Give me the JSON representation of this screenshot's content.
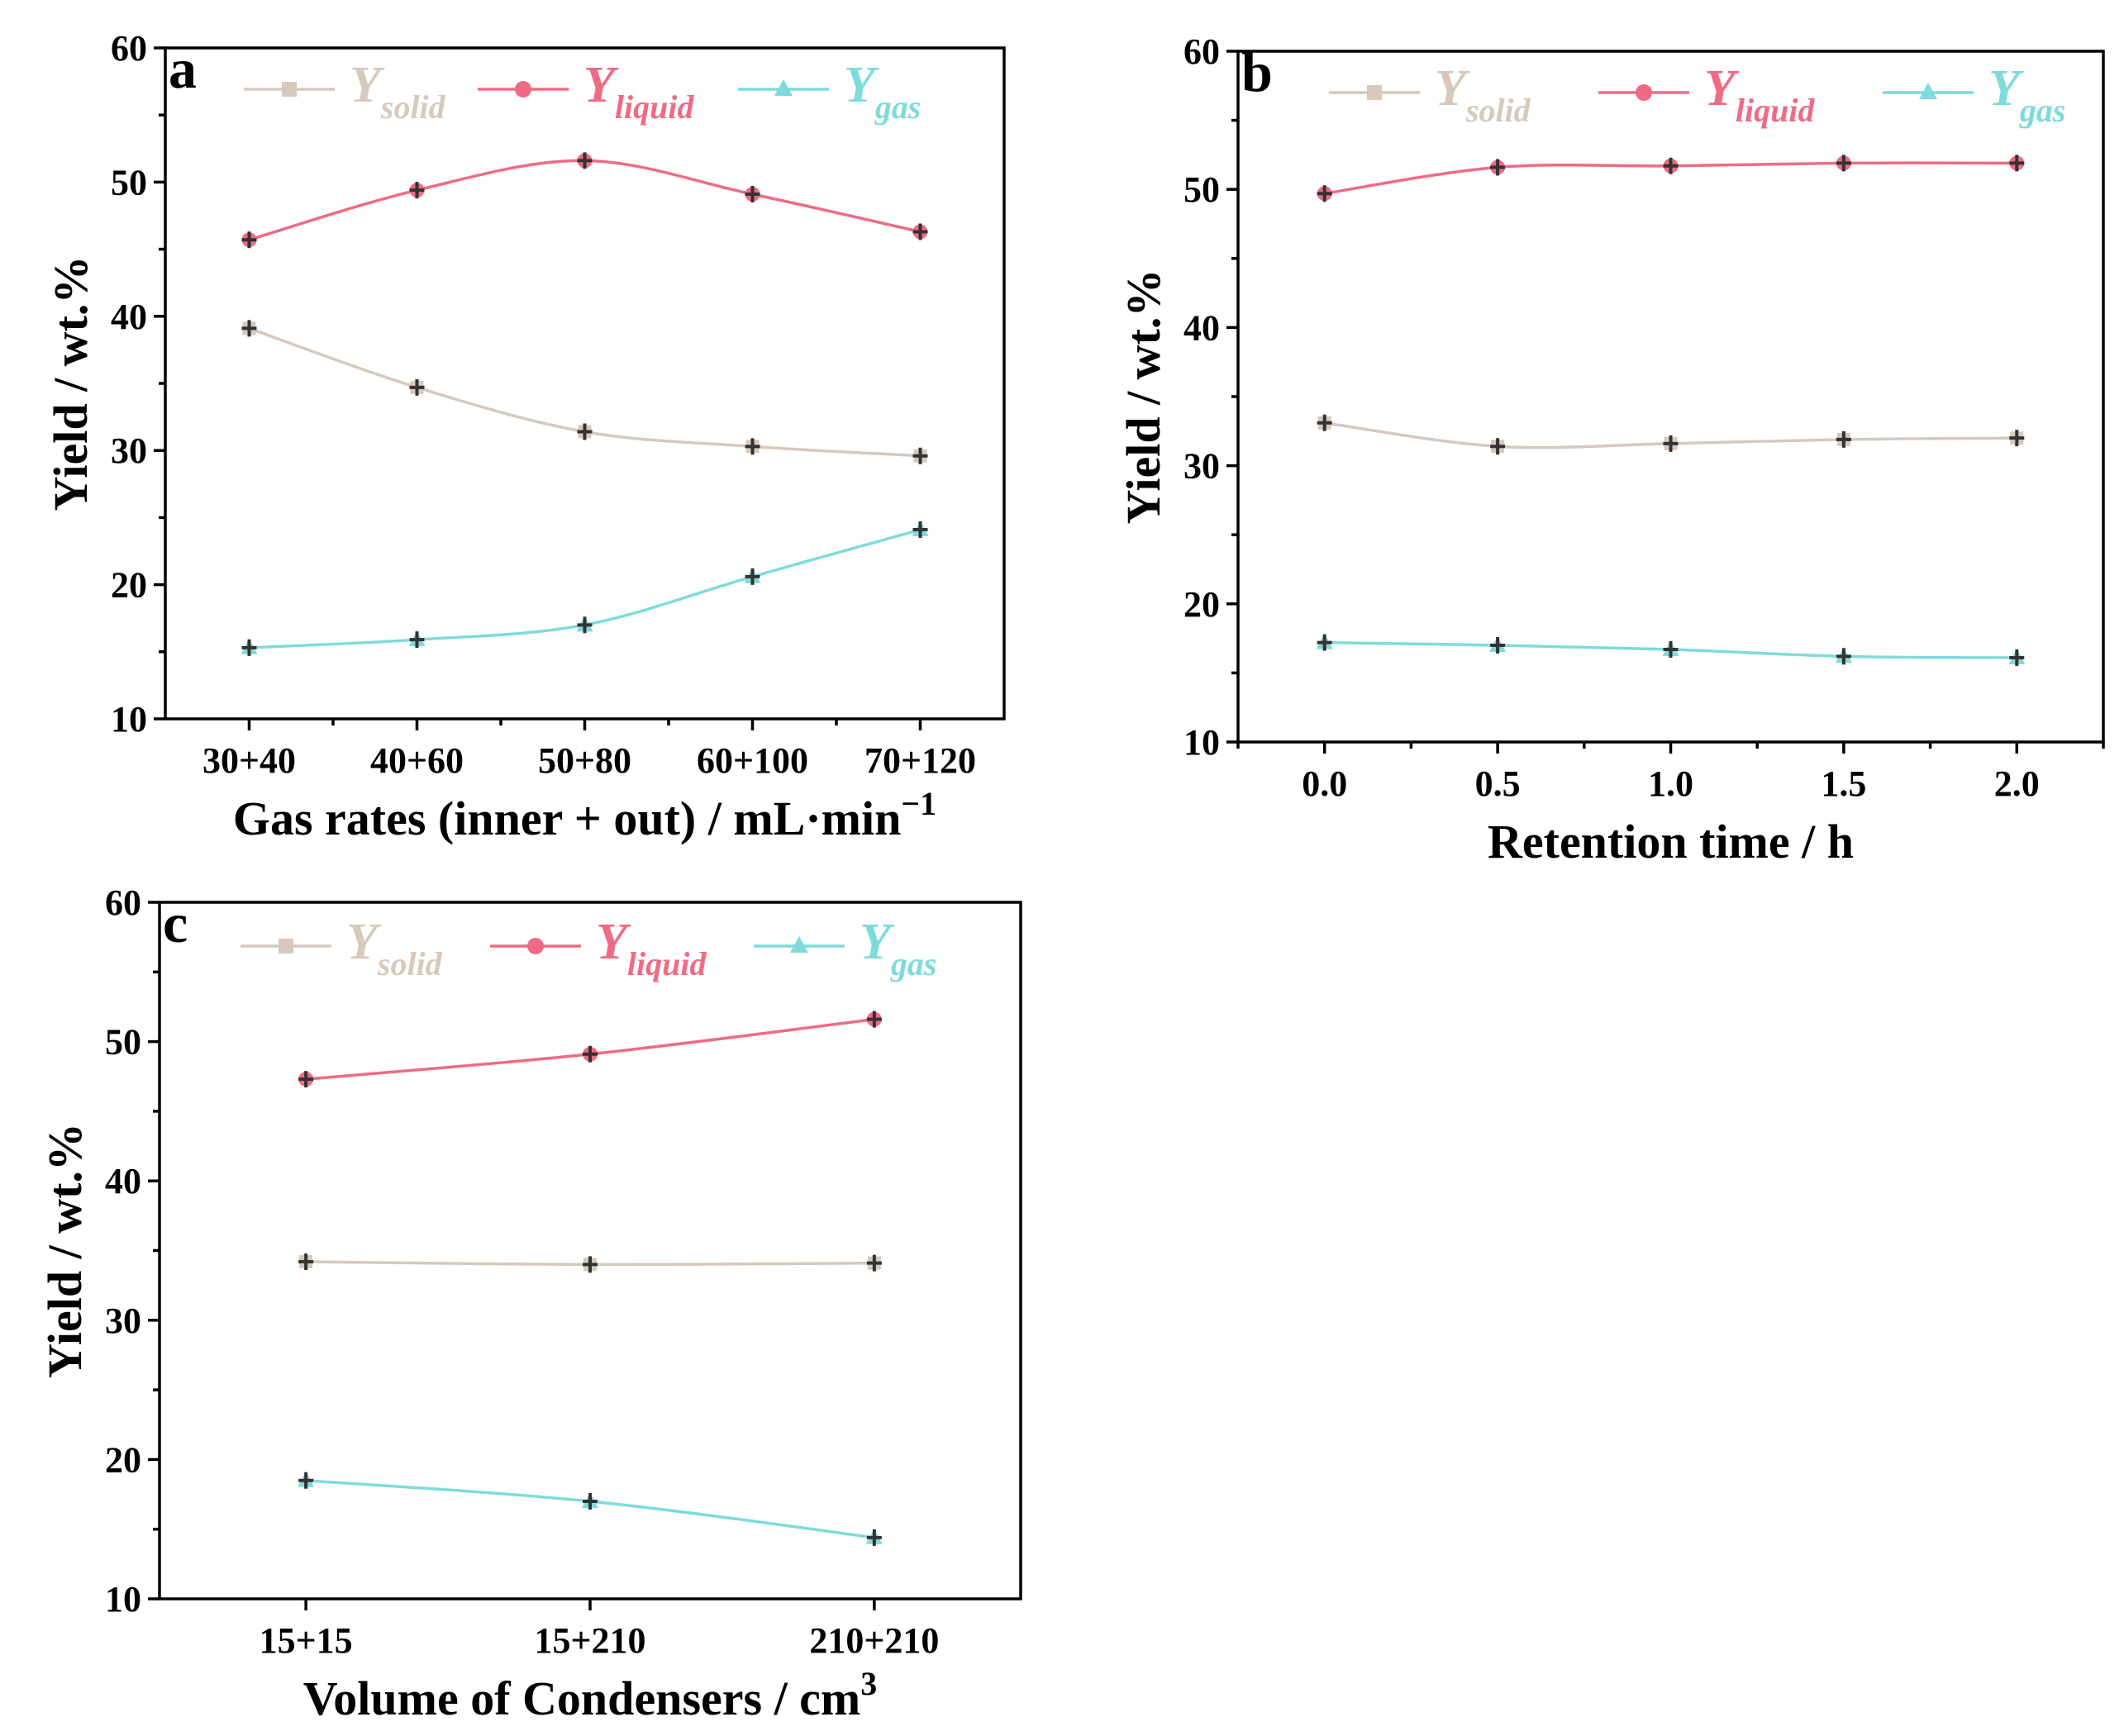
{
  "chart_data": [
    {
      "panel": "a",
      "type": "line",
      "categories": [
        "30+40",
        "40+60",
        "50+80",
        "60+100",
        "70+120"
      ],
      "xlabel": "Gas rates (inner + out) / mL·min",
      "xlabel_sup": "−1",
      "ylabel": "Yield / wt.%",
      "ylim": [
        10,
        60
      ],
      "yticks": [
        "10",
        "20",
        "30",
        "40",
        "50",
        "60"
      ],
      "series": [
        {
          "name": "Y",
          "sub": "solid",
          "color": "#d6c9bd",
          "marker": "square",
          "values": [
            39.1,
            34.7,
            31.4,
            30.3,
            29.6
          ]
        },
        {
          "name": "Y",
          "sub": "liquid",
          "color": "#ef6b83",
          "marker": "circle",
          "values": [
            45.7,
            49.4,
            51.6,
            49.1,
            46.3
          ]
        },
        {
          "name": "Y",
          "sub": "gas",
          "color": "#7fdbdb",
          "marker": "triangle",
          "values": [
            15.3,
            15.9,
            17.0,
            20.6,
            24.1
          ]
        }
      ]
    },
    {
      "panel": "b",
      "type": "line",
      "categories": [
        "0.0",
        "0.5",
        "1.0",
        "1.5",
        "2.0"
      ],
      "xlabel": "Retention time / h",
      "xlabel_sup": "",
      "ylabel": "Yield / wt.%",
      "ylim": [
        10,
        60
      ],
      "yticks": [
        "10",
        "20",
        "30",
        "40",
        "50",
        "60"
      ],
      "series": [
        {
          "name": "Y",
          "sub": "solid",
          "color": "#d6c9bd",
          "marker": "square",
          "values": [
            33.1,
            31.4,
            31.6,
            31.9,
            32.0
          ]
        },
        {
          "name": "Y",
          "sub": "liquid",
          "color": "#ef6b83",
          "marker": "circle",
          "values": [
            49.7,
            51.6,
            51.7,
            51.9,
            51.9
          ]
        },
        {
          "name": "Y",
          "sub": "gas",
          "color": "#7fdbdb",
          "marker": "triangle",
          "values": [
            17.2,
            17.0,
            16.7,
            16.2,
            16.1
          ]
        }
      ]
    },
    {
      "panel": "c",
      "type": "line",
      "categories": [
        "15+15",
        "15+210",
        "210+210"
      ],
      "xlabel": "Volume of Condensers / cm",
      "xlabel_sup": "3",
      "ylabel": "Yield / wt.%",
      "ylim": [
        10,
        60
      ],
      "yticks": [
        "10",
        "20",
        "30",
        "40",
        "50",
        "60"
      ],
      "series": [
        {
          "name": "Y",
          "sub": "solid",
          "color": "#d6c9bd",
          "marker": "square",
          "values": [
            34.2,
            34.0,
            34.1
          ]
        },
        {
          "name": "Y",
          "sub": "liquid",
          "color": "#ef6b83",
          "marker": "circle",
          "values": [
            47.3,
            49.1,
            51.6
          ]
        },
        {
          "name": "Y",
          "sub": "gas",
          "color": "#7fdbdb",
          "marker": "triangle",
          "values": [
            18.5,
            17.0,
            14.4
          ]
        }
      ]
    }
  ]
}
